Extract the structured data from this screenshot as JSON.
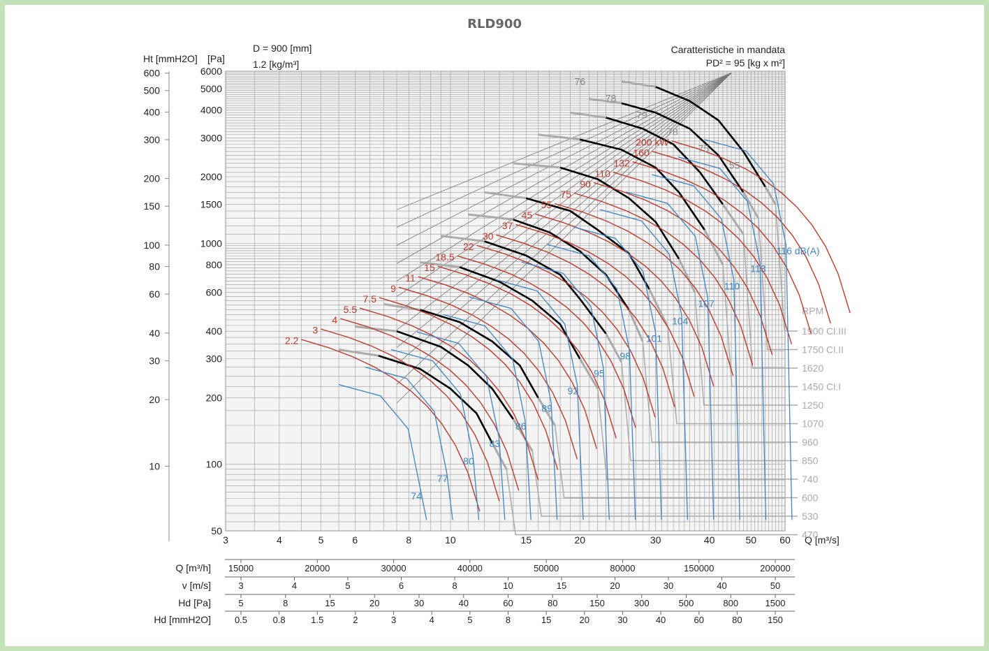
{
  "title": "RLD900",
  "header": {
    "diameter": "D = 900 [mm]",
    "density": "1.2 [kg/m³]",
    "mode": "Caratteristiche in mandata",
    "inertia": "PD² = 95 [kg x m²]"
  },
  "colors": {
    "frame": "#c4e2b8",
    "power": "#c0392b",
    "noise": "#3d85c6",
    "operating": "#000000",
    "rpm_line": "#aaaaaa",
    "grid": "#9a9a9a"
  },
  "chart_data": {
    "type": "line",
    "title": "RLD900",
    "x_axis": {
      "label": "Q [m³/s]",
      "scale": "log",
      "range": [
        3,
        60
      ],
      "ticks": [
        3,
        4,
        5,
        6,
        8,
        10,
        15,
        20,
        30,
        40,
        50,
        60
      ]
    },
    "y_axis_pa": {
      "label": "[Pa]",
      "scale": "log",
      "range": [
        50,
        6000
      ],
      "ticks": [
        50,
        100,
        200,
        300,
        400,
        600,
        800,
        1000,
        1500,
        2000,
        3000,
        4000,
        5000,
        6000
      ]
    },
    "y_axis_mmh2o": {
      "label": "Ht [mmH2O]",
      "ticks": [
        10,
        20,
        30,
        40,
        60,
        80,
        100,
        150,
        200,
        300,
        400,
        500,
        600
      ]
    },
    "rpm_header": "RPM",
    "rpm_labels": [
      "1900 Cl.III",
      "1750 Cl.II",
      "1620",
      "1450 Cl.I",
      "1250",
      "1070",
      "960",
      "850",
      "740",
      "600",
      "530",
      "470"
    ],
    "power_labels_kw": [
      "2.2",
      "3",
      "4",
      "5.5",
      "7.5",
      "9",
      "11",
      "15",
      "18.5",
      "22",
      "30",
      "37",
      "45",
      "55",
      "75",
      "90",
      "110",
      "132",
      "160",
      "200 kW"
    ],
    "noise_labels_dba": [
      "74",
      "77",
      "80",
      "83",
      "86",
      "89",
      "92",
      "95",
      "98",
      "101",
      "104",
      "107",
      "110",
      "113",
      "116 dB(A)"
    ],
    "efficiency_labels": [
      "76",
      "78",
      "79",
      "78",
      "75",
      "55"
    ],
    "series": [
      {
        "name": "1900 Cl.III",
        "points": [
          [
            25,
            5400
          ],
          [
            30,
            5100
          ],
          [
            36,
            4400
          ],
          [
            42,
            3600
          ],
          [
            48,
            2600
          ],
          [
            54,
            1800
          ],
          [
            57,
            1500
          ]
        ]
      },
      {
        "name": "1750 Cl.II",
        "points": [
          [
            21,
            4500
          ],
          [
            25,
            4300
          ],
          [
            30,
            3900
          ],
          [
            36,
            3300
          ],
          [
            42,
            2500
          ],
          [
            48,
            1700
          ],
          [
            52,
            1300
          ]
        ]
      },
      {
        "name": "1620",
        "points": [
          [
            19,
            3900
          ],
          [
            23,
            3700
          ],
          [
            28,
            3300
          ],
          [
            33,
            2800
          ],
          [
            38,
            2100
          ],
          [
            43,
            1500
          ],
          [
            48,
            1100
          ]
        ]
      },
      {
        "name": "1450 Cl.I",
        "points": [
          [
            16,
            3100
          ],
          [
            20,
            2950
          ],
          [
            25,
            2650
          ],
          [
            30,
            2200
          ],
          [
            34,
            1700
          ],
          [
            39,
            1150
          ],
          [
            43,
            800
          ]
        ]
      },
      {
        "name": "1250",
        "points": [
          [
            14,
            2300
          ],
          [
            18,
            2200
          ],
          [
            22,
            1950
          ],
          [
            26,
            1600
          ],
          [
            30,
            1250
          ],
          [
            34,
            850
          ],
          [
            37,
            600
          ]
        ]
      },
      {
        "name": "1070",
        "points": [
          [
            12,
            1700
          ],
          [
            15,
            1600
          ],
          [
            19,
            1400
          ],
          [
            22,
            1150
          ],
          [
            26,
            900
          ],
          [
            29,
            620
          ],
          [
            32,
            420
          ]
        ]
      },
      {
        "name": "960",
        "points": [
          [
            11,
            1350
          ],
          [
            14,
            1280
          ],
          [
            17,
            1120
          ],
          [
            20,
            920
          ],
          [
            23,
            720
          ],
          [
            26,
            500
          ],
          [
            28,
            360
          ]
        ]
      },
      {
        "name": "850",
        "points": [
          [
            9.5,
            1080
          ],
          [
            12,
            1020
          ],
          [
            15,
            880
          ],
          [
            18,
            720
          ],
          [
            20,
            560
          ],
          [
            23,
            390
          ],
          [
            25,
            290
          ]
        ]
      },
      {
        "name": "740",
        "points": [
          [
            8.5,
            820
          ],
          [
            10.5,
            780
          ],
          [
            13,
            670
          ],
          [
            15.5,
            550
          ],
          [
            18,
            430
          ],
          [
            20,
            300
          ],
          [
            22,
            220
          ]
        ]
      },
      {
        "name": "600",
        "points": [
          [
            7,
            530
          ],
          [
            8.5,
            500
          ],
          [
            10.5,
            440
          ],
          [
            12.5,
            360
          ],
          [
            14.5,
            280
          ],
          [
            16,
            200
          ],
          [
            17.5,
            150
          ]
        ]
      },
      {
        "name": "530",
        "points": [
          [
            6,
            420
          ],
          [
            7.5,
            400
          ],
          [
            9.5,
            340
          ],
          [
            11,
            280
          ],
          [
            12.5,
            220
          ],
          [
            14,
            160
          ],
          [
            15.5,
            115
          ]
        ]
      },
      {
        "name": "470",
        "points": [
          [
            5.5,
            330
          ],
          [
            6.8,
            310
          ],
          [
            8.5,
            270
          ],
          [
            10,
            220
          ],
          [
            11.5,
            170
          ],
          [
            12.5,
            125
          ],
          [
            13.5,
            95
          ]
        ]
      }
    ]
  },
  "bottom_axes": {
    "q_m3h": {
      "label": "Q [m³/h]",
      "values": [
        "15000",
        "20000",
        "30000",
        "40000",
        "50000",
        "80000",
        "150000",
        "200000"
      ]
    },
    "v_ms": {
      "label": "v [m/s]",
      "values": [
        "3",
        "4",
        "5",
        "6",
        "8",
        "10",
        "15",
        "20",
        "30",
        "40",
        "50"
      ]
    },
    "hd_pa": {
      "label": "Hd [Pa]",
      "values": [
        "5",
        "8",
        "15",
        "20",
        "30",
        "40",
        "60",
        "80",
        "150",
        "300",
        "500",
        "800",
        "1500"
      ]
    },
    "hd_mm": {
      "label": "Hd [mmH2O]",
      "values": [
        "0.5",
        "0.8",
        "1.5",
        "2",
        "3",
        "4",
        "5",
        "8",
        "15",
        "20",
        "30",
        "40",
        "60",
        "80",
        "150"
      ]
    }
  }
}
